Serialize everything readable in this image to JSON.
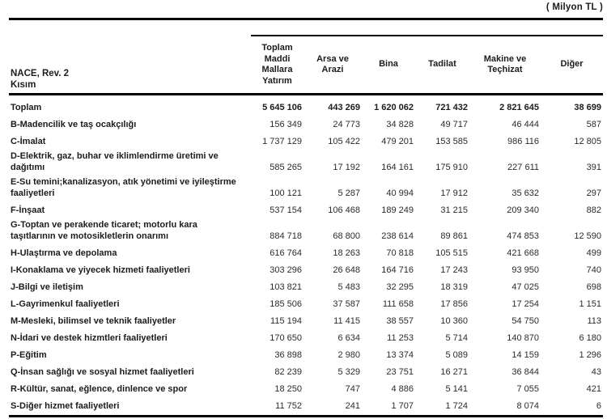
{
  "unit_label": "( Milyon TL )",
  "table": {
    "row_header": {
      "line1": "NACE, Rev. 2",
      "line2": "Kısım"
    },
    "columns": [
      "Toplam Maddi Mallara Yatırım",
      "Arsa ve Arazi",
      "Bina",
      "Tadilat",
      "Makine ve Teçhizat",
      "Diğer"
    ],
    "rows": [
      {
        "label": "Toplam",
        "emphasis": true,
        "values": [
          "5 645 106",
          "443 269",
          "1 620 062",
          "721 432",
          "2 821 645",
          "38 699"
        ]
      },
      {
        "label": "B-Madencilik ve taş ocakçılığı",
        "emphasis": false,
        "values": [
          "156 349",
          "24 773",
          "34 828",
          "49 717",
          "46 444",
          "587"
        ]
      },
      {
        "label": "C-İmalat",
        "emphasis": false,
        "values": [
          "1 737 129",
          "105 422",
          "479 201",
          "153 585",
          "986 116",
          "12 805"
        ]
      },
      {
        "label": "D-Elektrik, gaz, buhar ve iklimlendirme üretimi ve dağıtımı",
        "emphasis": false,
        "values": [
          "585 265",
          "17 192",
          "164 161",
          "175 910",
          "227 611",
          "391"
        ]
      },
      {
        "label": "E-Su temini;kanalizasyon, atık yönetimi ve iyileştirme faaliyetleri",
        "emphasis": false,
        "values": [
          "100 121",
          "5 287",
          "40 994",
          "17 912",
          "35 632",
          "297"
        ]
      },
      {
        "label": "F-İnşaat",
        "emphasis": false,
        "values": [
          "537 154",
          "106 468",
          "189 249",
          "31 215",
          "209 340",
          "882"
        ]
      },
      {
        "label": "G-Toptan ve perakende ticaret; motorlu kara taşıtlarının ve motosikletlerin onarımı",
        "emphasis": false,
        "values": [
          "884 718",
          "68 800",
          "238 614",
          "89 861",
          "474 853",
          "12 590"
        ]
      },
      {
        "label": "H-Ulaştırma ve depolama",
        "emphasis": false,
        "values": [
          "616 764",
          "18 263",
          "70 818",
          "105 515",
          "421 668",
          "499"
        ]
      },
      {
        "label": "I-Konaklama ve yiyecek hizmeti faaliyetleri",
        "emphasis": false,
        "values": [
          "303 296",
          "26 648",
          "164 716",
          "17 243",
          "93 950",
          "740"
        ]
      },
      {
        "label": "J-Bilgi ve iletişim",
        "emphasis": false,
        "values": [
          "103 821",
          "5 483",
          "32 295",
          "18 319",
          "47 025",
          "698"
        ]
      },
      {
        "label": "L-Gayrimenkul faaliyetleri",
        "emphasis": false,
        "values": [
          "185 506",
          "37 587",
          "111 658",
          "17 856",
          "17 254",
          "1 151"
        ]
      },
      {
        "label": "M-Mesleki, bilimsel ve teknik faaliyetler",
        "emphasis": false,
        "values": [
          "115 194",
          "11 415",
          "38 557",
          "10 360",
          "54 750",
          "113"
        ]
      },
      {
        "label": "N-İdari ve destek hizmtleri faaliyetleri",
        "emphasis": false,
        "values": [
          "170 650",
          "6 634",
          "11 253",
          "5 714",
          "140 870",
          "6 180"
        ]
      },
      {
        "label": "P-Eğitim",
        "emphasis": false,
        "values": [
          "36 898",
          "2 980",
          "13 374",
          "5 089",
          "14 159",
          "1 296"
        ]
      },
      {
        "label": "Q-İnsan sağlığı ve sosyal hizmet faaliyetleri",
        "emphasis": false,
        "values": [
          "82 239",
          "5 329",
          "23 751",
          "16 271",
          "36 844",
          "43"
        ]
      },
      {
        "label": "R-Kültür, sanat, eğlence, dinlence ve spor",
        "emphasis": false,
        "values": [
          "18 250",
          "747",
          "4 886",
          "5 141",
          "7 055",
          "421"
        ]
      },
      {
        "label": "S-Diğer hizmet faaliyetleri",
        "emphasis": false,
        "values": [
          "11 752",
          "241",
          "1 707",
          "1 724",
          "8 074",
          "6"
        ]
      }
    ]
  }
}
